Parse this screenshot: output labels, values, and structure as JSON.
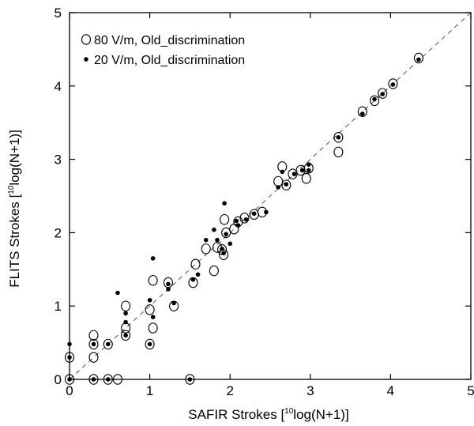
{
  "chart_data": {
    "type": "scatter",
    "xlabel_prefix": "SAFIR Strokes [",
    "xlabel_sup": "10",
    "xlabel_suffix": "log(N+1)]",
    "ylabel_prefix": "FLITS Strokes [",
    "ylabel_sup": "10",
    "ylabel_suffix": "log(N+1)]",
    "xlim": [
      0,
      5
    ],
    "ylim": [
      0,
      5
    ],
    "xticks": [
      "0",
      "1",
      "2",
      "3",
      "4",
      "5"
    ],
    "yticks": [
      "0",
      "1",
      "2",
      "3",
      "4",
      "5"
    ],
    "grid": false,
    "legend_position": "top-left",
    "reference_line": {
      "style": "dashed",
      "from": [
        0,
        0
      ],
      "to": [
        5,
        5
      ]
    },
    "series": [
      {
        "name": "80 V/m, Old_discrimination",
        "marker": "open-circle",
        "color": "#000000",
        "points": [
          [
            0,
            0
          ],
          [
            0,
            0.3
          ],
          [
            0.3,
            0
          ],
          [
            0.3,
            0.3
          ],
          [
            0.3,
            0.48
          ],
          [
            0.3,
            0.6
          ],
          [
            0.48,
            0
          ],
          [
            0.48,
            0.48
          ],
          [
            0.6,
            0
          ],
          [
            0.7,
            0.6
          ],
          [
            0.7,
            0.7
          ],
          [
            0.7,
            1.0
          ],
          [
            1.0,
            0.48
          ],
          [
            1.0,
            0.95
          ],
          [
            1.04,
            0.7
          ],
          [
            1.04,
            1.35
          ],
          [
            1.23,
            1.32
          ],
          [
            1.3,
            1.0
          ],
          [
            1.5,
            0
          ],
          [
            1.54,
            1.32
          ],
          [
            1.57,
            1.57
          ],
          [
            1.7,
            1.78
          ],
          [
            1.8,
            1.48
          ],
          [
            1.84,
            1.8
          ],
          [
            1.9,
            1.77
          ],
          [
            1.92,
            1.7
          ],
          [
            1.93,
            2.18
          ],
          [
            1.95,
            2.0
          ],
          [
            2.05,
            2.05
          ],
          [
            2.1,
            2.15
          ],
          [
            2.18,
            2.2
          ],
          [
            2.3,
            2.25
          ],
          [
            2.4,
            2.28
          ],
          [
            2.6,
            2.7
          ],
          [
            2.65,
            2.9
          ],
          [
            2.7,
            2.65
          ],
          [
            2.78,
            2.8
          ],
          [
            2.88,
            2.85
          ],
          [
            2.95,
            2.74
          ],
          [
            2.98,
            2.88
          ],
          [
            3.35,
            3.1
          ],
          [
            3.35,
            3.3
          ],
          [
            3.65,
            3.65
          ],
          [
            3.8,
            3.8
          ],
          [
            3.9,
            3.9
          ],
          [
            4.03,
            4.03
          ],
          [
            4.35,
            4.38
          ]
        ]
      },
      {
        "name": "20 V/m, Old_discrimination",
        "marker": "filled-dot",
        "color": "#000000",
        "points": [
          [
            0,
            0
          ],
          [
            0,
            0.3
          ],
          [
            0,
            0.48
          ],
          [
            0.3,
            0
          ],
          [
            0.3,
            0.48
          ],
          [
            0.48,
            0
          ],
          [
            0.48,
            0.48
          ],
          [
            0.6,
            1.18
          ],
          [
            0.7,
            0.6
          ],
          [
            0.7,
            0.78
          ],
          [
            0.7,
            0.9
          ],
          [
            1.0,
            0.48
          ],
          [
            1.0,
            1.08
          ],
          [
            1.04,
            1.65
          ],
          [
            1.04,
            0.85
          ],
          [
            1.23,
            1.23
          ],
          [
            1.23,
            1.3
          ],
          [
            1.3,
            1.04
          ],
          [
            1.5,
            0
          ],
          [
            1.54,
            1.36
          ],
          [
            1.6,
            1.43
          ],
          [
            1.7,
            1.9
          ],
          [
            1.8,
            2.04
          ],
          [
            1.84,
            1.9
          ],
          [
            1.9,
            1.78
          ],
          [
            1.92,
            1.72
          ],
          [
            1.93,
            2.4
          ],
          [
            1.95,
            1.98
          ],
          [
            2.0,
            1.85
          ],
          [
            2.08,
            2.16
          ],
          [
            2.1,
            2.1
          ],
          [
            2.2,
            2.18
          ],
          [
            2.3,
            2.26
          ],
          [
            2.45,
            2.28
          ],
          [
            2.6,
            2.62
          ],
          [
            2.65,
            2.83
          ],
          [
            2.7,
            2.66
          ],
          [
            2.8,
            2.8
          ],
          [
            2.9,
            2.85
          ],
          [
            2.98,
            2.93
          ],
          [
            2.98,
            2.85
          ],
          [
            3.35,
            3.3
          ],
          [
            3.65,
            3.62
          ],
          [
            3.8,
            3.82
          ],
          [
            3.9,
            3.89
          ],
          [
            4.03,
            4.02
          ],
          [
            4.35,
            4.36
          ]
        ]
      }
    ]
  }
}
